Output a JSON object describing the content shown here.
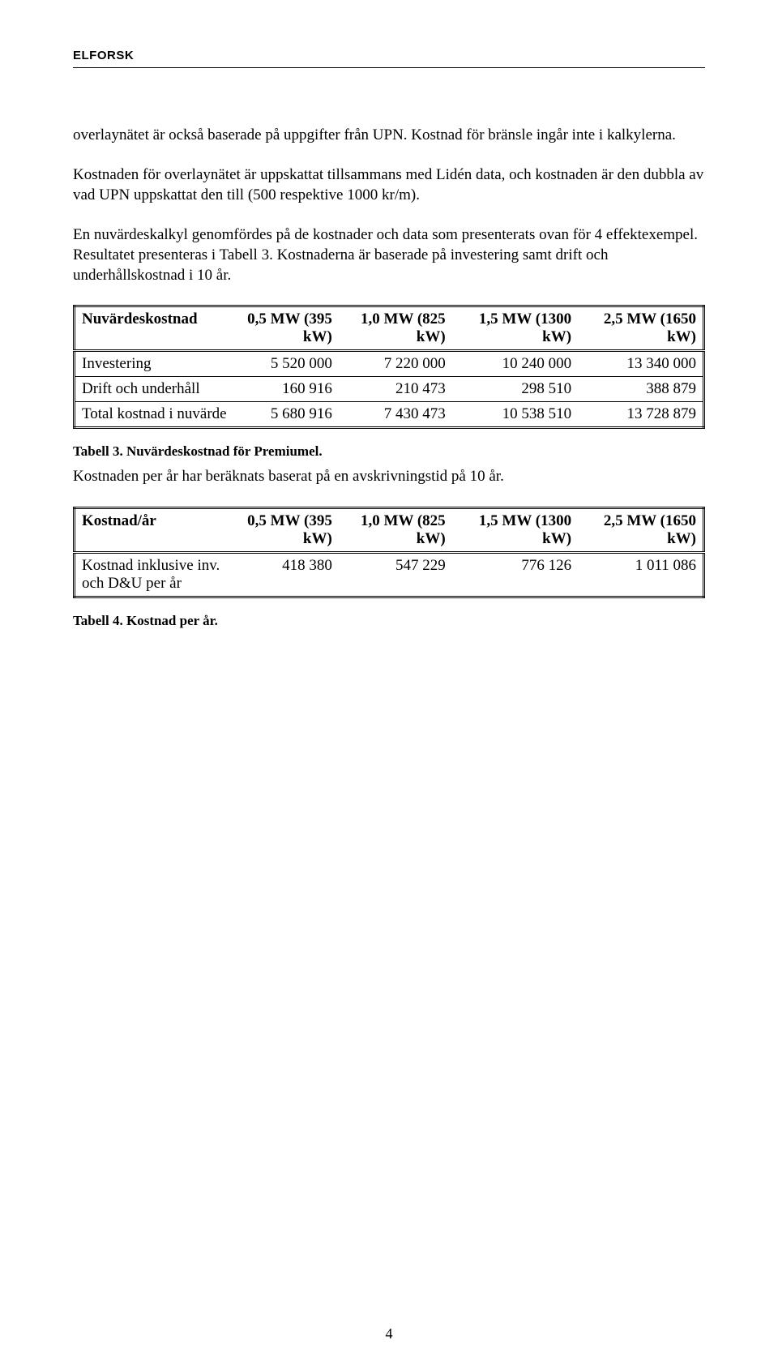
{
  "header": {
    "brand": "ELFORSK"
  },
  "paragraphs": {
    "p1": "overlaynätet är också baserade på uppgifter från UPN. Kostnad för bränsle ingår inte i kalkylerna.",
    "p2": "Kostnaden för overlaynätet är uppskattat tillsammans med Lidén data, och kostnaden är den dubbla av vad UPN uppskattat den till (500 respektive 1000 kr/m).",
    "p3": "En nuvärdeskalkyl genomfördes på de kostnader och data som presenterats ovan för 4 effektexempel. Resultatet presenteras i Tabell 3. Kostnaderna är baserade på investering samt drift och underhållskostnad i 10 år.",
    "p4": "Kostnaden per år har beräknats baserat på en avskrivningstid på 10 år."
  },
  "table3": {
    "caption": "Tabell 3. Nuvärdeskostnad för Premiumel.",
    "headers": {
      "c0": "Nuvärdeskostnad",
      "c1": "0,5 MW (395 kW)",
      "c2": "1,0 MW (825 kW)",
      "c3": "1,5 MW (1300 kW)",
      "c4": "2,5 MW (1650 kW)"
    },
    "rows": [
      {
        "label": "Investering",
        "v1": "5 520 000",
        "v2": "7 220 000",
        "v3": "10 240 000",
        "v4": "13 340 000"
      },
      {
        "label": "Drift och underhåll",
        "v1": "160 916",
        "v2": "210 473",
        "v3": "298 510",
        "v4": "388 879"
      },
      {
        "label": "Total kostnad i nuvärde",
        "v1": "5 680 916",
        "v2": "7 430 473",
        "v3": "10 538 510",
        "v4": "13 728 879"
      }
    ]
  },
  "table4": {
    "caption": "Tabell 4. Kostnad per år.",
    "headers": {
      "c0": "Kostnad/år",
      "c1": "0,5 MW (395 kW)",
      "c2": "1,0 MW (825 kW)",
      "c3": "1,5 MW (1300 kW)",
      "c4": "2,5 MW (1650 kW)"
    },
    "rows": [
      {
        "label": "Kostnad inklusive inv. och D&U per år",
        "v1": "418 380",
        "v2": "547 229",
        "v3": "776 126",
        "v4": "1 011 086"
      }
    ]
  },
  "pagenum": "4"
}
